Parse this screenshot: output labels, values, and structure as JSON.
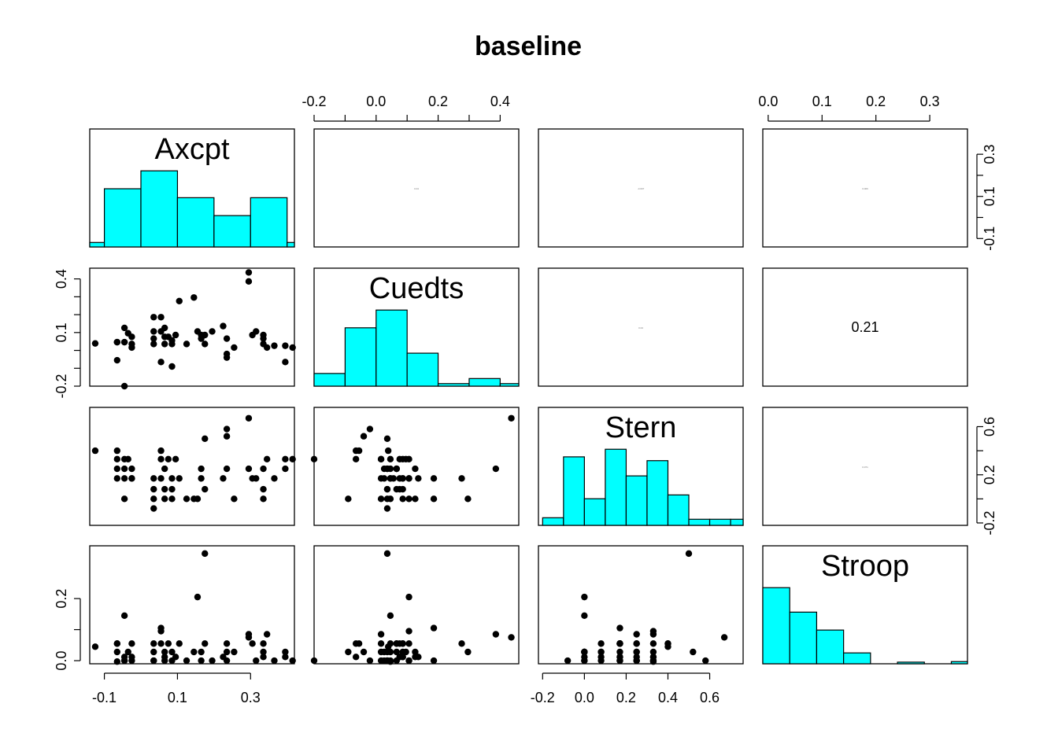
{
  "chart_data": {
    "type": "scatter",
    "kind": "pairs-matrix",
    "title": "baseline",
    "variables": [
      "Axcpt",
      "Cuedts",
      "Stern",
      "Stroop"
    ],
    "ranges": {
      "Axcpt": [
        -0.14,
        0.42
      ],
      "Cuedts": [
        -0.2,
        0.46
      ],
      "Stern": [
        -0.22,
        0.76
      ],
      "Stroop": [
        -0.01,
        0.37
      ]
    },
    "ticks": {
      "Axcpt": [
        -0.1,
        0.1,
        0.3
      ],
      "Cuedts": [
        -0.2,
        0.0,
        0.2,
        0.4
      ],
      "Cuedts_left": [
        -0.2,
        0.1,
        0.4
      ],
      "Stern": [
        -0.2,
        0.0,
        0.2,
        0.4,
        0.6
      ],
      "Stern_right": [
        -0.2,
        0.2,
        0.6
      ],
      "Stroop": [
        0.0,
        0.1,
        0.2,
        0.3
      ],
      "Stroop_left": [
        0.0,
        0.2
      ],
      "Axcpt_right": [
        -0.1,
        0.1,
        0.3
      ]
    },
    "histograms": {
      "Axcpt": {
        "breaks": [
          -0.14,
          -0.1,
          0.0,
          0.1,
          0.2,
          0.3,
          0.4,
          0.44
        ],
        "counts": [
          0.5,
          6.5,
          8.5,
          5.5,
          3.5,
          5.5,
          0.5
        ]
      },
      "Cuedts": {
        "breaks": [
          -0.2,
          -0.1,
          0.0,
          0.1,
          0.2,
          0.3,
          0.4,
          0.46
        ],
        "counts": [
          2.5,
          11.5,
          15,
          6.5,
          0.5,
          1.5,
          0.5
        ]
      },
      "Stern": {
        "breaks": [
          -0.2,
          -0.1,
          0.0,
          0.1,
          0.2,
          0.3,
          0.4,
          0.5,
          0.6,
          0.7,
          0.8
        ],
        "counts": [
          1,
          9,
          3.5,
          10,
          6.5,
          8.5,
          4,
          0.8,
          0.8,
          0.8
        ]
      },
      "Stroop": {
        "breaks": [
          -0.01,
          0.04,
          0.09,
          0.14,
          0.19,
          0.24,
          0.29,
          0.34,
          0.37
        ],
        "counts": [
          14,
          9.5,
          6.2,
          2,
          0,
          0.3,
          0,
          0.4
        ]
      }
    },
    "correlations": [
      {
        "row": 0,
        "col": 1,
        "value": "0.04",
        "size": "tiny"
      },
      {
        "row": 0,
        "col": 2,
        "value": "-0.007",
        "size": "tiny"
      },
      {
        "row": 0,
        "col": 3,
        "value": "0.006",
        "size": "tiny"
      },
      {
        "row": 1,
        "col": 2,
        "value": "0.04",
        "size": "tiny"
      },
      {
        "row": 1,
        "col": 3,
        "value": "0.21",
        "size": "normal"
      },
      {
        "row": 2,
        "col": 3,
        "value": "0.071",
        "size": "tiny"
      }
    ],
    "observations": [
      [
        -0.125,
        0.039,
        0.4,
        0.045
      ],
      [
        -0.065,
        -0.055,
        0.4,
        0.055
      ],
      [
        -0.065,
        0.046,
        0.33,
        -0.003
      ],
      [
        -0.065,
        0.046,
        0.25,
        0.028
      ],
      [
        -0.065,
        0.046,
        0.17,
        0.055
      ],
      [
        -0.045,
        -0.2,
        0.33,
        0.0
      ],
      [
        -0.045,
        0.046,
        0.17,
        0.0
      ],
      [
        -0.045,
        0.126,
        0.25,
        0.012
      ],
      [
        -0.045,
        0.046,
        0.0,
        0.145
      ],
      [
        -0.035,
        0.096,
        0.33,
        0.028
      ],
      [
        -0.025,
        0.016,
        0.17,
        0.055
      ],
      [
        -0.025,
        0.036,
        0.25,
        0.0
      ],
      [
        -0.025,
        0.076,
        0.17,
        0.012
      ],
      [
        0.035,
        0.106,
        0.17,
        0.055
      ],
      [
        0.035,
        0.066,
        0.08,
        0.028
      ],
      [
        0.035,
        0.186,
        0.0,
        0.0
      ],
      [
        0.035,
        0.036,
        -0.08,
        0.0
      ],
      [
        0.055,
        0.106,
        0.33,
        0.095
      ],
      [
        0.055,
        0.186,
        0.17,
        0.105
      ],
      [
        0.055,
        -0.065,
        0.4,
        0.055
      ],
      [
        0.065,
        0.076,
        0.08,
        0.012
      ],
      [
        0.065,
        0.036,
        0.25,
        0.0
      ],
      [
        0.065,
        0.126,
        0.0,
        0.028
      ],
      [
        0.075,
        0.076,
        0.33,
        0.055
      ],
      [
        0.085,
        0.056,
        0.17,
        -0.022
      ],
      [
        0.085,
        0.036,
        0.08,
        0.0
      ],
      [
        0.085,
        -0.09,
        0.0,
        0.028
      ],
      [
        0.095,
        0.086,
        0.33,
        0.012
      ],
      [
        0.105,
        0.276,
        0.17,
        0.055
      ],
      [
        0.125,
        0.036,
        0.0,
        0.0
      ],
      [
        0.145,
        0.296,
        0.0,
        0.028
      ],
      [
        0.155,
        0.106,
        0.0,
        0.205
      ],
      [
        0.165,
        0.066,
        0.25,
        0.0
      ],
      [
        0.165,
        0.086,
        0.17,
        0.028
      ],
      [
        0.175,
        0.036,
        0.5,
        0.345
      ],
      [
        0.175,
        0.086,
        0.08,
        0.055
      ],
      [
        0.195,
        0.106,
        0.78,
        0.0
      ],
      [
        0.225,
        0.136,
        0.17,
        0.012
      ],
      [
        0.235,
        0.066,
        0.25,
        0.055
      ],
      [
        0.235,
        -0.02,
        0.58,
        0.0
      ],
      [
        0.235,
        -0.04,
        0.52,
        0.028
      ],
      [
        0.255,
        0.016,
        0.0,
        0.028
      ],
      [
        0.295,
        0.436,
        0.67,
        0.075
      ],
      [
        0.295,
        0.386,
        0.25,
        0.085
      ],
      [
        0.305,
        0.086,
        0.17,
        0.055
      ],
      [
        0.315,
        0.106,
        0.17,
        0.0
      ],
      [
        0.335,
        0.036,
        0.08,
        0.028
      ],
      [
        0.335,
        0.086,
        0.0,
        0.012
      ],
      [
        0.335,
        0.066,
        0.25,
        0.055
      ],
      [
        0.345,
        0.016,
        0.33,
        0.085
      ],
      [
        0.365,
        0.026,
        0.17,
        0.0
      ],
      [
        0.395,
        0.026,
        0.25,
        0.028
      ],
      [
        0.395,
        -0.065,
        0.33,
        0.012
      ],
      [
        0.415,
        0.016,
        0.33,
        0.0
      ]
    ]
  }
}
